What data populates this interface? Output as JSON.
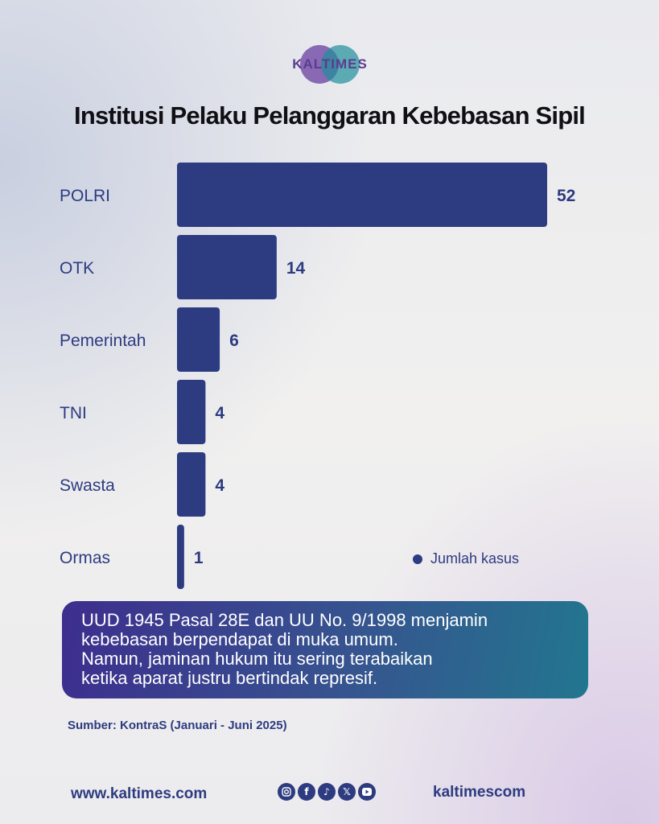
{
  "brand": {
    "logo_text": "KALTIMES"
  },
  "title": "Institusi Pelaku Pelanggaran Kebebasan Sipil",
  "chart_data": {
    "type": "bar",
    "orientation": "horizontal",
    "categories": [
      "POLRI",
      "OTK",
      "Pemerintah",
      "TNI",
      "Swasta",
      "Ormas"
    ],
    "values": [
      52,
      14,
      6,
      4,
      4,
      1
    ],
    "series": [
      {
        "name": "Jumlah kasus",
        "values": [
          52,
          14,
          6,
          4,
          4,
          1
        ]
      }
    ],
    "bar_color": "#2d3b80",
    "legend_position": "bottom-right",
    "grid": false
  },
  "legend": {
    "label": "Jumlah kasus"
  },
  "note": {
    "lines": [
      "UUD 1945 Pasal 28E dan UU No. 9/1998 menjamin",
      "kebebasan berpendapat di muka umum.",
      "Namun, jaminan hukum itu sering terabaikan",
      "ketika aparat justru bertindak represif."
    ]
  },
  "source": "Sumber: KontraS (Januari - Juni 2025)",
  "footer": {
    "website": "www.kaltimes.com",
    "handle": "kaltimescom",
    "social_icons": [
      "instagram-icon",
      "facebook-icon",
      "tiktok-icon",
      "x-icon",
      "youtube-icon"
    ]
  },
  "colors": {
    "primary": "#2d3b80",
    "title": "#0f0f14",
    "note_start": "#3d2e8e",
    "note_end": "#22768f"
  }
}
